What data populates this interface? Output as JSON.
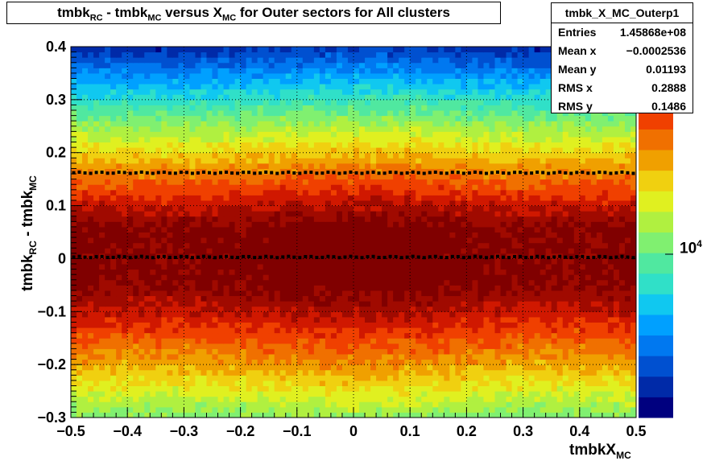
{
  "title": {
    "part1": "tmbk",
    "sub1": "RC",
    "part2": " - tmbk",
    "sub2": "MC",
    "part3": " versus X",
    "sub3": "MC",
    "part4": " for Outer sectors for All clusters"
  },
  "stats": {
    "name": "tmbk_X_MC_Outerp1",
    "rows": [
      {
        "label": "Entries",
        "value": "1.45868e+08"
      },
      {
        "label": "Mean x",
        "value": "−0.0002536"
      },
      {
        "label": "Mean y",
        "value": "0.01193"
      },
      {
        "label": "RMS x",
        "value": "0.2888"
      },
      {
        "label": "RMS y",
        "value": "0.1486"
      }
    ]
  },
  "axes": {
    "x_title_main": "tmbkX",
    "x_title_sub": "MC",
    "y_title_main": "tmbk",
    "y_title_sub1": "RC",
    "y_title_mid": " - tmbk",
    "y_title_sub2": "MC",
    "z_base": "10",
    "z_exp": "4"
  },
  "chart_data": {
    "type": "heatmap",
    "xlim": [
      -0.5,
      0.5
    ],
    "ylim": [
      -0.3,
      0.4
    ],
    "x_ticks": [
      "−0.5",
      "−0.4",
      "−0.3",
      "−0.2",
      "−0.1",
      "0",
      "0.1",
      "0.2",
      "0.3",
      "0.4",
      "0.5"
    ],
    "x_tick_values": [
      -0.5,
      -0.4,
      -0.3,
      -0.2,
      -0.1,
      0,
      0.1,
      0.2,
      0.3,
      0.4,
      0.5
    ],
    "y_ticks": [
      "−0.3",
      "−0.2",
      "−0.1",
      "0",
      "0.1",
      "0.2",
      "0.3",
      "0.4"
    ],
    "y_tick_values": [
      -0.3,
      -0.2,
      -0.1,
      0,
      0.1,
      0.2,
      0.3,
      0.4
    ],
    "grid": true,
    "z_scale": "log",
    "palette": [
      "#00007f",
      "#002aa8",
      "#0050d0",
      "#0078f0",
      "#00a0ff",
      "#10c8f0",
      "#30e0c8",
      "#50e8a0",
      "#80f070",
      "#b0f040",
      "#e0f020",
      "#f0d010",
      "#f0a000",
      "#f07000",
      "#f04000",
      "#d01800",
      "#a00a00",
      "#800000"
    ],
    "profile_main": {
      "y": 0.003,
      "color": "#000000"
    },
    "profile_upper": {
      "y": 0.162,
      "color": "#000000"
    }
  },
  "colors": {
    "frame": "#000000",
    "grid": "#000000",
    "background": "#ffffff"
  }
}
